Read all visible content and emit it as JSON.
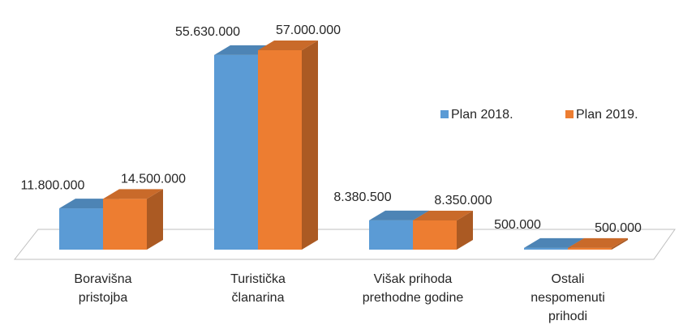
{
  "chart_data": {
    "type": "bar3d",
    "categories": [
      [
        "Boravišna",
        "pristojba"
      ],
      [
        "Turistička",
        "članarina"
      ],
      [
        "Višak prihoda",
        "prethodne godine"
      ],
      [
        "Ostali",
        "nespomenuti",
        "prihodi"
      ]
    ],
    "series": [
      {
        "name": "Plan 2018.",
        "color": "#5b9bd5",
        "values": [
          11800000,
          55630000,
          8380500,
          500000
        ],
        "value_labels": [
          "11.800.000",
          "55.630.000",
          "8.380.500",
          "500.000"
        ]
      },
      {
        "name": "Plan 2019.",
        "color": "#ed7d31",
        "values": [
          14500000,
          57000000,
          8350000,
          500000
        ],
        "value_labels": [
          "14.500.000",
          "57.000.000",
          "8.350.000",
          "500.000"
        ]
      }
    ],
    "legend": "right"
  }
}
